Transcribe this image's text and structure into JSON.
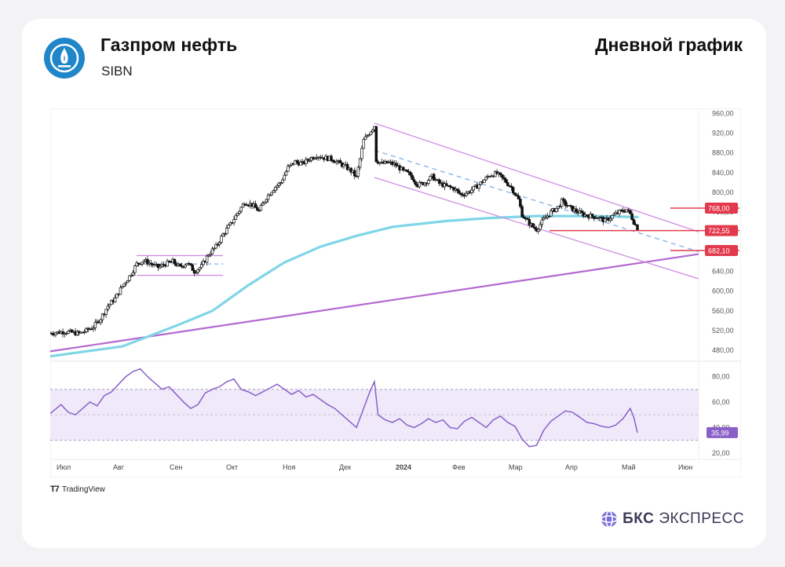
{
  "header": {
    "company": "Газпром нефть",
    "ticker": "SIBN",
    "chart_title": "Дневной график"
  },
  "footer": {
    "tradingview": "TradingView",
    "brand_bold": "БКС",
    "brand_rest": "ЭКСПРЕСС"
  },
  "colors": {
    "accent_blue": "#1f86c9",
    "sma": "#7fd6e6",
    "channel": "#d08fe3",
    "trend": "#b468d2",
    "dashed": "#7fb0e8",
    "level_red": "#e23a4c",
    "rsi": "#8a60c8",
    "rsi_band": "#efe9fa"
  },
  "chart_data": [
    {
      "type": "candlestick",
      "timeframe": "daily",
      "title": "",
      "x_ticks": [
        "Июл",
        "Авг",
        "Сен",
        "Окт",
        "Ноя",
        "Дек",
        "2024",
        "Фев",
        "Мар",
        "Апр",
        "Май",
        "Июн"
      ],
      "y_ticks": [
        "480,00",
        "520,00",
        "560,00",
        "600,00",
        "640,00",
        "680,00",
        "720,00",
        "760,00",
        "800,00",
        "840,00",
        "880,00",
        "920,00",
        "960,00"
      ],
      "ylim": [
        458,
        970
      ],
      "close_path": [
        [
          0,
          515
        ],
        [
          4,
          518
        ],
        [
          8,
          514
        ],
        [
          10,
          520
        ],
        [
          12,
          528
        ],
        [
          14,
          545
        ],
        [
          16,
          570
        ],
        [
          18,
          585
        ],
        [
          20,
          610
        ],
        [
          22,
          630
        ],
        [
          24,
          655
        ],
        [
          26,
          662
        ],
        [
          28,
          655
        ],
        [
          30,
          648
        ],
        [
          32,
          655
        ],
        [
          34,
          660
        ],
        [
          36,
          648
        ],
        [
          38,
          658
        ],
        [
          40,
          640
        ],
        [
          42,
          650
        ],
        [
          44,
          675
        ],
        [
          46,
          690
        ],
        [
          48,
          715
        ],
        [
          50,
          735
        ],
        [
          52,
          758
        ],
        [
          54,
          780
        ],
        [
          56,
          775
        ],
        [
          58,
          762
        ],
        [
          60,
          790
        ],
        [
          62,
          808
        ],
        [
          64,
          820
        ],
        [
          66,
          850
        ],
        [
          68,
          862
        ],
        [
          70,
          858
        ],
        [
          72,
          868
        ],
        [
          74,
          875
        ],
        [
          76,
          870
        ],
        [
          78,
          868
        ],
        [
          80,
          860
        ],
        [
          82,
          852
        ],
        [
          84,
          840
        ],
        [
          85,
          830
        ],
        [
          87,
          905
        ],
        [
          89,
          925
        ],
        [
          90,
          935
        ],
        [
          90.5,
          865
        ],
        [
          92,
          858
        ],
        [
          94,
          860
        ],
        [
          96,
          855
        ],
        [
          98,
          843
        ],
        [
          100,
          835
        ],
        [
          102,
          815
        ],
        [
          104,
          820
        ],
        [
          106,
          832
        ],
        [
          108,
          818
        ],
        [
          110,
          812
        ],
        [
          112,
          808
        ],
        [
          114,
          795
        ],
        [
          116,
          800
        ],
        [
          118,
          810
        ],
        [
          120,
          822
        ],
        [
          122,
          835
        ],
        [
          124,
          838
        ],
        [
          126,
          825
        ],
        [
          128,
          810
        ],
        [
          130,
          785
        ],
        [
          131,
          755
        ],
        [
          132,
          745
        ],
        [
          134,
          730
        ],
        [
          135,
          725
        ],
        [
          137,
          745
        ],
        [
          139,
          760
        ],
        [
          141,
          770
        ],
        [
          142,
          782
        ],
        [
          144,
          770
        ],
        [
          146,
          762
        ],
        [
          148,
          755
        ],
        [
          150,
          752
        ],
        [
          152,
          750
        ],
        [
          154,
          742
        ],
        [
          156,
          752
        ],
        [
          158,
          760
        ],
        [
          160,
          765
        ],
        [
          161,
          756
        ],
        [
          162,
          740
        ],
        [
          163,
          728
        ]
      ],
      "sma": [
        [
          0,
          468
        ],
        [
          20,
          488
        ],
        [
          35,
          530
        ],
        [
          45,
          560
        ],
        [
          55,
          612
        ],
        [
          65,
          658
        ],
        [
          75,
          690
        ],
        [
          85,
          712
        ],
        [
          95,
          730
        ],
        [
          110,
          742
        ],
        [
          122,
          748
        ],
        [
          135,
          752
        ],
        [
          150,
          752
        ],
        [
          163,
          750
        ]
      ],
      "rsi": {
        "y_ticks": [
          "20,00",
          "40,00",
          "60,00",
          "80,00"
        ],
        "ylim": [
          15,
          92
        ],
        "band": [
          30,
          70
        ],
        "mid": 50,
        "last_value_label": "35,99",
        "path": [
          [
            0,
            51
          ],
          [
            3,
            58
          ],
          [
            5,
            52
          ],
          [
            7,
            50
          ],
          [
            9,
            55
          ],
          [
            11,
            60
          ],
          [
            13,
            57
          ],
          [
            15,
            65
          ],
          [
            17,
            68
          ],
          [
            19,
            74
          ],
          [
            21,
            80
          ],
          [
            23,
            84
          ],
          [
            25,
            86
          ],
          [
            27,
            80
          ],
          [
            29,
            75
          ],
          [
            31,
            70
          ],
          [
            33,
            72
          ],
          [
            35,
            66
          ],
          [
            37,
            60
          ],
          [
            39,
            55
          ],
          [
            41,
            58
          ],
          [
            43,
            67
          ],
          [
            45,
            70
          ],
          [
            47,
            72
          ],
          [
            49,
            76
          ],
          [
            51,
            78
          ],
          [
            53,
            70
          ],
          [
            55,
            68
          ],
          [
            57,
            65
          ],
          [
            59,
            68
          ],
          [
            61,
            71
          ],
          [
            63,
            74
          ],
          [
            65,
            70
          ],
          [
            67,
            66
          ],
          [
            69,
            69
          ],
          [
            71,
            64
          ],
          [
            73,
            66
          ],
          [
            75,
            62
          ],
          [
            77,
            58
          ],
          [
            79,
            55
          ],
          [
            81,
            50
          ],
          [
            83,
            45
          ],
          [
            85,
            40
          ],
          [
            87,
            55
          ],
          [
            89,
            70
          ],
          [
            90,
            76
          ],
          [
            91,
            50
          ],
          [
            93,
            46
          ],
          [
            95,
            44
          ],
          [
            97,
            47
          ],
          [
            99,
            42
          ],
          [
            101,
            40
          ],
          [
            103,
            43
          ],
          [
            105,
            47
          ],
          [
            107,
            44
          ],
          [
            109,
            46
          ],
          [
            111,
            40
          ],
          [
            113,
            39
          ],
          [
            115,
            45
          ],
          [
            117,
            48
          ],
          [
            119,
            44
          ],
          [
            121,
            40
          ],
          [
            123,
            46
          ],
          [
            125,
            49
          ],
          [
            127,
            44
          ],
          [
            129,
            41
          ],
          [
            131,
            31
          ],
          [
            133,
            25
          ],
          [
            135,
            26
          ],
          [
            137,
            38
          ],
          [
            139,
            45
          ],
          [
            141,
            49
          ],
          [
            143,
            53
          ],
          [
            145,
            52
          ],
          [
            147,
            48
          ],
          [
            149,
            44
          ],
          [
            151,
            43
          ],
          [
            153,
            41
          ],
          [
            155,
            40
          ],
          [
            157,
            42
          ],
          [
            159,
            47
          ],
          [
            161,
            55
          ],
          [
            162,
            48
          ],
          [
            163,
            36
          ]
        ]
      },
      "levels": [
        {
          "value": 768,
          "label": "768,00"
        },
        {
          "value": 722.55,
          "label": "722,55"
        },
        {
          "value": 682.1,
          "label": "682,10"
        }
      ],
      "range_box": {
        "x_start": 24,
        "x_end": 48,
        "top": 672,
        "bottom": 632,
        "mid": 655
      },
      "descending_channel": {
        "upper": [
          [
            90,
            940
          ],
          [
            180,
            720
          ]
        ],
        "lower": [
          [
            90,
            830
          ],
          [
            180,
            625
          ]
        ]
      },
      "dashed_midline": [
        [
          90,
          885
        ],
        [
          180,
          680
        ]
      ],
      "ascending_trend": [
        [
          0,
          478
        ],
        [
          180,
          675
        ]
      ]
    }
  ]
}
